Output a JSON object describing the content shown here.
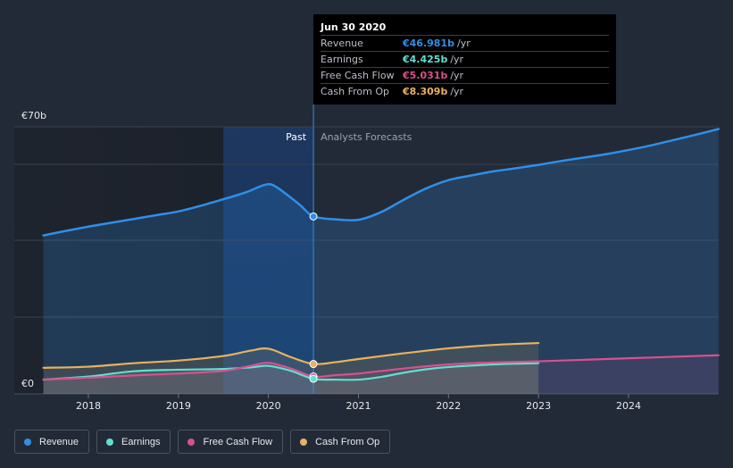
{
  "tooltip": {
    "date": "Jun 30 2020",
    "rows": [
      {
        "label": "Revenue",
        "value": "€46.981b",
        "unit": "/yr",
        "color": "#2f8fe8"
      },
      {
        "label": "Earnings",
        "value": "€4.425b",
        "unit": "/yr",
        "color": "#5fe0d0"
      },
      {
        "label": "Free Cash Flow",
        "value": "€5.031b",
        "unit": "/yr",
        "color": "#d9508f"
      },
      {
        "label": "Cash From Op",
        "value": "€8.309b",
        "unit": "/yr",
        "color": "#e8b25f"
      }
    ]
  },
  "chart_data": {
    "type": "area",
    "y_axis_top_label": "€70b",
    "y_axis_bottom_label": "€0",
    "ylim": [
      0,
      70
    ],
    "xlim": [
      2017.5,
      2025.0
    ],
    "x_ticks": [
      "2018",
      "2019",
      "2020",
      "2021",
      "2022",
      "2023",
      "2024"
    ],
    "past_label": "Past",
    "forecast_label": "Analysts Forecasts",
    "divider_x": 2020.5,
    "highlight_x": [
      2019.5,
      2020.5
    ],
    "series": [
      {
        "name": "Revenue",
        "color": "#2f8fe8",
        "x": [
          2017.5,
          2017.75,
          2018.0,
          2018.25,
          2018.5,
          2018.75,
          2019.0,
          2019.25,
          2019.5,
          2019.75,
          2019.95,
          2020.05,
          2020.2,
          2020.35,
          2020.5,
          2020.75,
          2021.0,
          2021.25,
          2021.5,
          2021.75,
          2022.0,
          2022.25,
          2022.5,
          2022.75,
          2023.0,
          2023.25,
          2023.5,
          2023.75,
          2024.0,
          2024.25,
          2024.5,
          2024.75,
          2025.0
        ],
        "values": [
          42.0,
          43.2,
          44.3,
          45.3,
          46.3,
          47.3,
          48.3,
          49.8,
          51.5,
          53.3,
          55.2,
          55.2,
          52.8,
          50.0,
          47.0,
          46.2,
          46.1,
          48.1,
          51.3,
          54.3,
          56.5,
          57.7,
          58.8,
          59.6,
          60.5,
          61.5,
          62.4,
          63.3,
          64.4,
          65.6,
          67.0,
          68.4,
          69.9
        ]
      },
      {
        "name": "Earnings",
        "color": "#5fe0d0",
        "x": [
          2017.5,
          2018.0,
          2018.5,
          2019.0,
          2019.5,
          2019.8,
          2020.0,
          2020.25,
          2020.5,
          2020.75,
          2021.0,
          2021.25,
          2021.5,
          2021.75,
          2022.0,
          2022.5,
          2023.0
        ],
        "values": [
          4.2,
          5.0,
          6.4,
          6.8,
          7.0,
          7.4,
          7.8,
          6.5,
          4.4,
          4.2,
          4.2,
          4.9,
          6.0,
          6.9,
          7.5,
          8.2,
          8.5
        ]
      },
      {
        "name": "Free Cash Flow",
        "color": "#d9508f",
        "x": [
          2017.5,
          2018.0,
          2018.5,
          2019.0,
          2019.5,
          2019.8,
          2020.0,
          2020.25,
          2020.5,
          2020.75,
          2021.0,
          2021.5,
          2022.0,
          2022.5,
          2023.0,
          2023.5,
          2024.0,
          2024.5,
          2025.0
        ],
        "values": [
          4.2,
          4.7,
          5.3,
          5.8,
          6.5,
          7.8,
          8.6,
          7.1,
          5.0,
          5.4,
          5.8,
          7.1,
          8.2,
          8.7,
          9.0,
          9.4,
          9.8,
          10.2,
          10.6
        ]
      },
      {
        "name": "Cash From Op",
        "color": "#e8b25f",
        "x": [
          2017.5,
          2018.0,
          2018.5,
          2019.0,
          2019.5,
          2019.8,
          2020.0,
          2020.25,
          2020.5,
          2020.75,
          2021.0,
          2021.5,
          2022.0,
          2022.5,
          2023.0
        ],
        "values": [
          7.3,
          7.6,
          8.5,
          9.2,
          10.4,
          11.8,
          12.3,
          10.1,
          8.3,
          8.8,
          9.6,
          11.1,
          12.4,
          13.3,
          13.8
        ]
      }
    ],
    "markers": [
      {
        "series": "Revenue",
        "x": 2020.5,
        "y": 46.981
      },
      {
        "series": "Cash From Op",
        "x": 2020.5,
        "y": 8.309
      },
      {
        "series": "Free Cash Flow",
        "x": 2020.5,
        "y": 5.031
      },
      {
        "series": "Earnings",
        "x": 2020.5,
        "y": 4.425
      }
    ]
  },
  "legend": [
    {
      "label": "Revenue",
      "color": "#2f8fe8"
    },
    {
      "label": "Earnings",
      "color": "#5fe0d0"
    },
    {
      "label": "Free Cash Flow",
      "color": "#d9508f"
    },
    {
      "label": "Cash From Op",
      "color": "#e8b25f"
    }
  ]
}
